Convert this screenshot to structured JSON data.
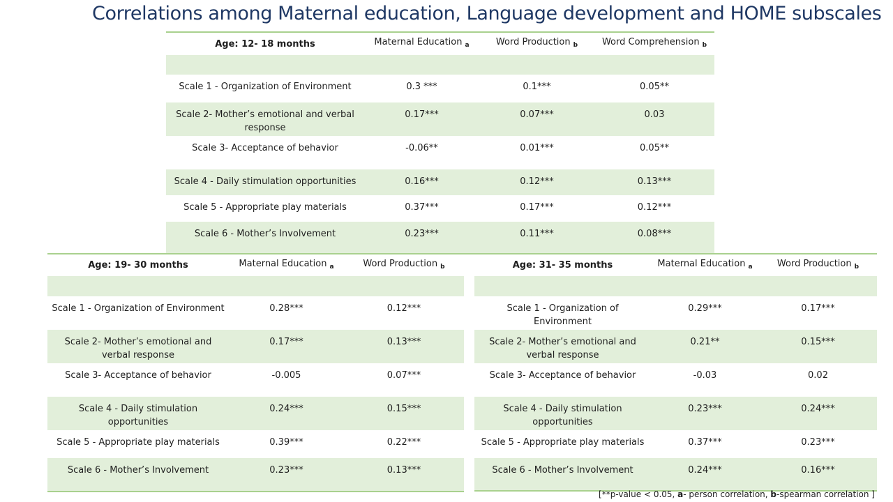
{
  "title": "Correlations among Maternal education, Language development and HOME subscales",
  "tables": [
    {
      "age": "Age: 12- 18 months",
      "columns": [
        {
          "label": "Maternal Education",
          "sub": "a"
        },
        {
          "label": "Word Production",
          "sub": "b"
        },
        {
          "label": "Word Comprehension",
          "sub": "b"
        }
      ],
      "rows": [
        {
          "scale": "",
          "values": [
            "",
            "",
            ""
          ]
        },
        {
          "scale": "Scale 1 -  Organization of Environment",
          "values": [
            "0.3 ***",
            "0.1***",
            "0.05**"
          ]
        },
        {
          "scale": "Scale 2- Mother’s emotional and verbal response",
          "values": [
            "0.17***",
            "0.07***",
            "0.03"
          ]
        },
        {
          "scale": "Scale 3- Acceptance of behavior",
          "values": [
            "-0.06**",
            "0.01***",
            "0.05**"
          ]
        },
        {
          "scale": "Scale 4 - Daily stimulation opportunities",
          "values": [
            "0.16***",
            "0.12***",
            "0.13***"
          ]
        },
        {
          "scale": "Scale 5 - Appropriate  play materials",
          "values": [
            "0.37***",
            "0.17***",
            "0.12***"
          ]
        },
        {
          "scale": "Scale 6 - Mother’s Involvement",
          "values": [
            "0.23***",
            "0.11***",
            "0.08***"
          ]
        }
      ]
    },
    {
      "age": "Age: 19- 30 months",
      "columns": [
        {
          "label": "Maternal Education",
          "sub": "a"
        },
        {
          "label": "Word Production",
          "sub": "b"
        }
      ],
      "rows": [
        {
          "scale": "",
          "values": [
            "",
            ""
          ]
        },
        {
          "scale": "Scale 1 -  Organization of Environment",
          "values": [
            "0.28***",
            "0.12***"
          ]
        },
        {
          "scale": "Scale 2- Mother’s emotional and verbal response",
          "values": [
            "0.17***",
            "0.13***"
          ]
        },
        {
          "scale": "Scale 3- Acceptance of behavior",
          "values": [
            "-0.005",
            "0.07***"
          ]
        },
        {
          "scale": "Scale 4 - Daily stimulation opportunities",
          "values": [
            "0.24***",
            "0.15***"
          ]
        },
        {
          "scale": "Scale 5 - Appropriate  play materials",
          "values": [
            "0.39***",
            "0.22***"
          ]
        },
        {
          "scale": "Scale 6 - Mother’s Involvement",
          "values": [
            "0.23***",
            "0.13***"
          ]
        }
      ]
    },
    {
      "age": "Age: 31- 35 months",
      "columns": [
        {
          "label": "Maternal Education",
          "sub": "a"
        },
        {
          "label": "Word Production",
          "sub": "b"
        }
      ],
      "rows": [
        {
          "scale": "",
          "values": [
            "",
            ""
          ]
        },
        {
          "scale": "Scale 1 -  Organization of Environment",
          "values": [
            "0.29***",
            "0.17***"
          ]
        },
        {
          "scale": "Scale 2- Mother’s emotional and verbal response",
          "values": [
            "0.21**",
            "0.15***"
          ]
        },
        {
          "scale": "Scale 3- Acceptance of behavior",
          "values": [
            "-0.03",
            "0.02"
          ]
        },
        {
          "scale": "Scale 4 - Daily stimulation opportunities",
          "values": [
            "0.23***",
            "0.24***"
          ]
        },
        {
          "scale": "Scale 5 - Appropriate  play materials",
          "values": [
            "0.37***",
            "0.23***"
          ]
        },
        {
          "scale": "Scale 6 - Mother’s Involvement",
          "values": [
            "0.24***",
            "0.16***"
          ]
        }
      ]
    }
  ],
  "footnote": {
    "open": "[**p-value  < 0.05, ",
    "a_key": "a",
    "a_text": "- person correlation, ",
    "b_key": "b",
    "b_text": "-spearman correlation ]"
  }
}
